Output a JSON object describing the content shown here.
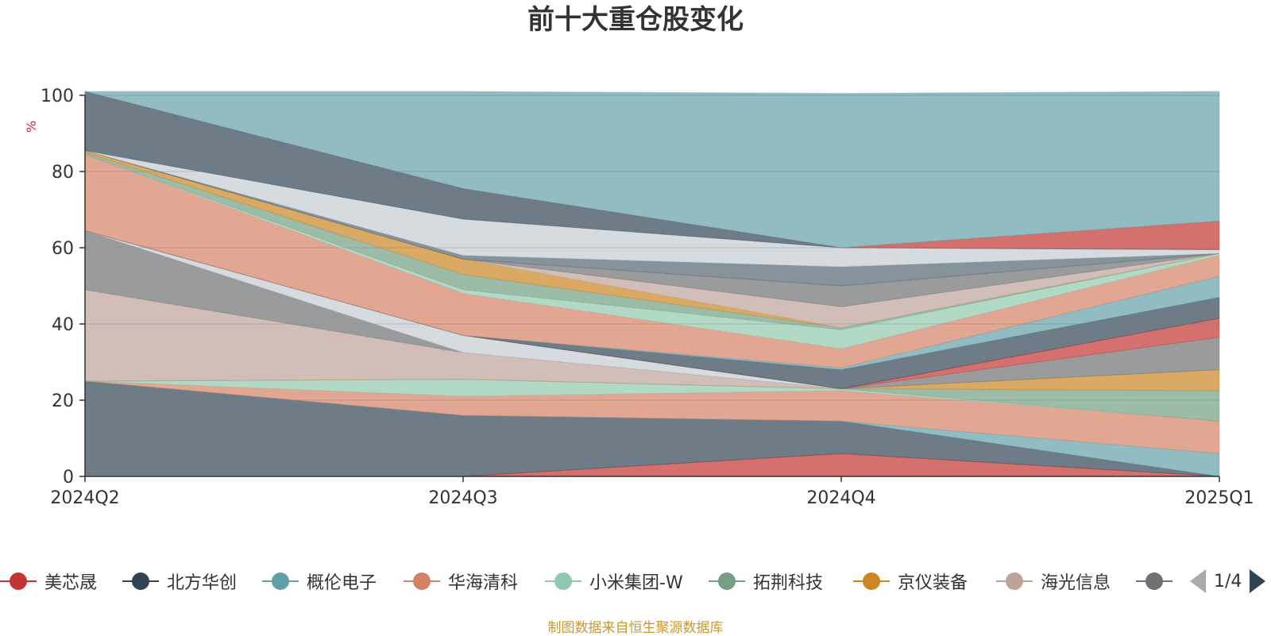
{
  "colors": {
    "palette": [
      "#c23531",
      "#2f4554",
      "#61a0a8",
      "#d48265",
      "#91c7ae",
      "#749f83",
      "#ca8622",
      "#bda29a",
      "#6e7074",
      "#546570",
      "#c4ccd3"
    ]
  },
  "legend": {
    "items": [
      {
        "label": "美芯晟",
        "color": "#c23531"
      },
      {
        "label": "北方华创",
        "color": "#2f4554"
      },
      {
        "label": "概伦电子",
        "color": "#61a0a8"
      },
      {
        "label": "华海清科",
        "color": "#d48265"
      },
      {
        "label": "小米集团-W",
        "color": "#91c7ae"
      },
      {
        "label": "拓荆科技",
        "color": "#749f83"
      },
      {
        "label": "京仪装备",
        "color": "#ca8622"
      },
      {
        "label": "海光信息",
        "color": "#bda29a"
      },
      {
        "label": "",
        "color": "#6e7074"
      }
    ],
    "page": "1/4"
  },
  "footer": {
    "source": "制图数据来自恒生聚源数据库"
  },
  "chart_data": {
    "type": "area",
    "title": "前十大重仓股变化",
    "y_unit": "%",
    "x": [
      "2024Q2",
      "2024Q3",
      "2024Q4",
      "2025Q1"
    ],
    "ylim": [
      0,
      100
    ],
    "yticks": [
      0,
      20,
      40,
      60,
      80,
      100
    ],
    "grid": true,
    "stacked": true,
    "legend_position": "bottom",
    "series": [
      {
        "values": [
          0,
          0,
          6,
          0
        ],
        "color": "#c23531"
      },
      {
        "values": [
          25,
          16,
          8.5,
          0
        ],
        "color": "#2f4554"
      },
      {
        "values": [
          0,
          0,
          0,
          6
        ],
        "color": "#61a0a8"
      },
      {
        "values": [
          0,
          5,
          8,
          8.5
        ],
        "color": "#d48265"
      },
      {
        "values": [
          0,
          4.5,
          0.5,
          0
        ],
        "color": "#91c7ae"
      },
      {
        "values": [
          0,
          0,
          0,
          8
        ],
        "color": "#749f83"
      },
      {
        "values": [
          0,
          0,
          0,
          5.5
        ],
        "color": "#ca8622"
      },
      {
        "values": [
          24,
          7,
          0,
          0
        ],
        "color": "#bda29a"
      },
      {
        "values": [
          15.5,
          0,
          0,
          8.5
        ],
        "color": "#6e7074"
      },
      {
        "values": [
          0,
          4.5,
          0,
          0
        ],
        "color": "#c4ccd3"
      },
      {
        "values": [
          0,
          0,
          0,
          5
        ],
        "color": "#c23531"
      },
      {
        "values": [
          0,
          0,
          5,
          5.5
        ],
        "color": "#2f4554"
      },
      {
        "values": [
          0,
          0,
          0.5,
          5.5
        ],
        "color": "#61a0a8"
      },
      {
        "values": [
          20,
          11,
          5,
          5.5
        ],
        "color": "#d48265"
      },
      {
        "values": [
          0,
          1,
          5,
          0.5
        ],
        "color": "#91c7ae"
      },
      {
        "values": [
          0.5,
          4,
          0.5,
          0
        ],
        "color": "#749f83"
      },
      {
        "values": [
          0.5,
          4,
          0,
          0
        ],
        "color": "#ca8622"
      },
      {
        "values": [
          0,
          0,
          5.5,
          0
        ],
        "color": "#bda29a"
      },
      {
        "values": [
          0,
          0,
          5.5,
          0
        ],
        "color": "#6e7074"
      },
      {
        "values": [
          0,
          1,
          5,
          0
        ],
        "color": "#546570"
      },
      {
        "values": [
          0,
          9.5,
          5,
          1
        ],
        "color": "#c4ccd3"
      },
      {
        "values": [
          15.5,
          8,
          0,
          0
        ],
        "color": "#2f4554"
      },
      {
        "values": [
          0,
          0,
          0,
          7.5
        ],
        "color": "#c23531"
      },
      {
        "values": [
          0,
          25.5,
          40.5,
          34
        ],
        "color": "#61a0a8"
      }
    ]
  }
}
